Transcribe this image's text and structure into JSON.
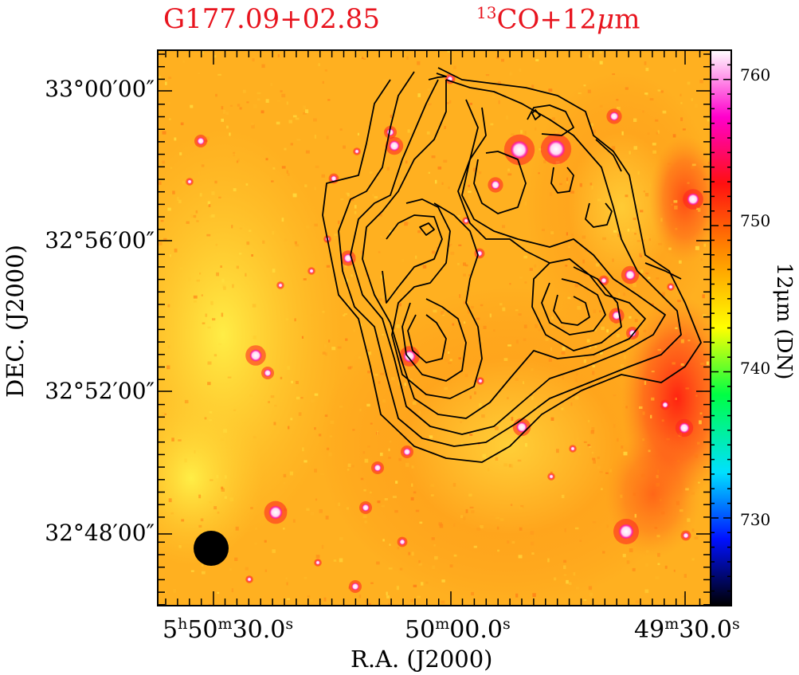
{
  "title": {
    "source": "G177.09+02.85",
    "tracer_sup": "13",
    "tracer_main": "CO+12",
    "tracer_unit_mu": "μ",
    "tracer_unit_m": "m"
  },
  "axes": {
    "xlabel": "R.A.  (J2000)",
    "ylabel": "DEC.  (J2000)",
    "yticks": [
      "33°00′00″",
      "32°56′00″",
      "32°52′00″",
      "32°48′00″"
    ],
    "xticks": [
      {
        "h": "5",
        "hs": "h",
        "m": "50",
        "ms": "m",
        "s": "30.0",
        "ss": "s"
      },
      {
        "h": "",
        "hs": "",
        "m": "50",
        "ms": "m",
        "s": "00.0",
        "ss": "s"
      },
      {
        "h": "",
        "hs": "",
        "m": "49",
        "ms": "m",
        "s": "30.0",
        "ss": "s"
      }
    ]
  },
  "colorbar": {
    "title": "12μm (DN)",
    "labels": [
      "760",
      "750",
      "740",
      "730"
    ],
    "range": [
      724,
      762
    ],
    "colors": [
      "#000000",
      "#0011ff",
      "#00e0ff",
      "#00ff44",
      "#ffff00",
      "#ff8800",
      "#ff1010",
      "#ff00cc",
      "#ffffff"
    ]
  },
  "image": {
    "background_color": "#ffb020",
    "beam_color": "#000000",
    "contour_color": "#000000"
  }
}
